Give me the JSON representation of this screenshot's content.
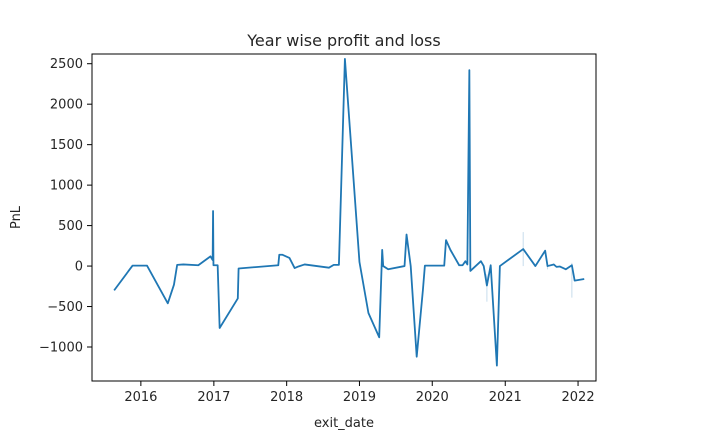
{
  "chart_data": {
    "type": "line",
    "title": "Year wise profit and loss",
    "xlabel": "exit_date",
    "ylabel": "PnL",
    "xlim": [
      "2015-05-01",
      "2022-04-01"
    ],
    "ylim": [
      -1420,
      2620
    ],
    "x_ticks": [
      "2016",
      "2017",
      "2018",
      "2019",
      "2020",
      "2021",
      "2022"
    ],
    "y_ticks": [
      -1000,
      -500,
      0,
      500,
      1000,
      1500,
      2000,
      2500
    ],
    "grid": false,
    "line_color": "#1f77b4",
    "series": [
      {
        "points": [
          [
            "2015-08-20",
            -300
          ],
          [
            "2015-11-20",
            5
          ],
          [
            "2016-02-01",
            5
          ],
          [
            "2016-05-15",
            -460
          ],
          [
            "2016-06-15",
            -230
          ],
          [
            "2016-07-01",
            15
          ],
          [
            "2016-08-01",
            20
          ],
          [
            "2016-10-15",
            10
          ],
          [
            "2016-12-15",
            120
          ],
          [
            "2016-12-26",
            75
          ],
          [
            "2016-12-28",
            680
          ],
          [
            "2016-12-30",
            10
          ],
          [
            "2017-01-20",
            10
          ],
          [
            "2017-01-30",
            -765
          ],
          [
            "2017-05-01",
            -400
          ],
          [
            "2017-05-05",
            -30
          ],
          [
            "2017-11-20",
            10
          ],
          [
            "2017-11-25",
            140
          ],
          [
            "2017-12-10",
            140
          ],
          [
            "2018-01-15",
            100
          ],
          [
            "2018-02-10",
            -25
          ],
          [
            "2018-03-01",
            -5
          ],
          [
            "2018-04-01",
            20
          ],
          [
            "2018-08-01",
            -20
          ],
          [
            "2018-08-25",
            15
          ],
          [
            "2018-09-20",
            15
          ],
          [
            "2018-10-20",
            2560
          ],
          [
            "2019-01-01",
            50
          ],
          [
            "2019-02-15",
            -580
          ],
          [
            "2019-04-10",
            -880
          ],
          [
            "2019-04-25",
            200
          ],
          [
            "2019-04-30",
            0
          ],
          [
            "2019-05-25",
            -40
          ],
          [
            "2019-08-15",
            0
          ],
          [
            "2019-08-25",
            390
          ],
          [
            "2019-09-15",
            0
          ],
          [
            "2019-10-15",
            -1120
          ],
          [
            "2019-11-15",
            -300
          ],
          [
            "2019-11-25",
            5
          ],
          [
            "2020-01-01",
            5
          ],
          [
            "2020-03-01",
            5
          ],
          [
            "2020-03-10",
            320
          ],
          [
            "2020-04-01",
            200
          ],
          [
            "2020-05-15",
            10
          ],
          [
            "2020-06-01",
            10
          ],
          [
            "2020-06-15",
            60
          ],
          [
            "2020-06-25",
            20
          ],
          [
            "2020-07-05",
            2420
          ],
          [
            "2020-07-10",
            -60
          ],
          [
            "2020-09-01",
            60
          ],
          [
            "2020-09-15",
            0
          ],
          [
            "2020-10-01",
            -240
          ],
          [
            "2020-10-20",
            10
          ],
          [
            "2020-11-20",
            -1230
          ],
          [
            "2020-12-05",
            0
          ],
          [
            "2021-04-01",
            210
          ],
          [
            "2021-06-01",
            0
          ],
          [
            "2021-07-20",
            190
          ],
          [
            "2021-08-01",
            0
          ],
          [
            "2021-09-01",
            20
          ],
          [
            "2021-09-15",
            -10
          ],
          [
            "2021-10-01",
            -5
          ],
          [
            "2021-11-01",
            -40
          ],
          [
            "2021-12-01",
            10
          ],
          [
            "2021-12-15",
            -180
          ],
          [
            "2022-02-01",
            -160
          ]
        ]
      }
    ],
    "error_bars": [
      [
        "2021-04-01",
        0,
        420
      ],
      [
        "2021-12-01",
        -390,
        40
      ],
      [
        "2021-08-01",
        -40,
        40
      ],
      [
        "2020-10-01",
        -440,
        -100
      ]
    ]
  }
}
